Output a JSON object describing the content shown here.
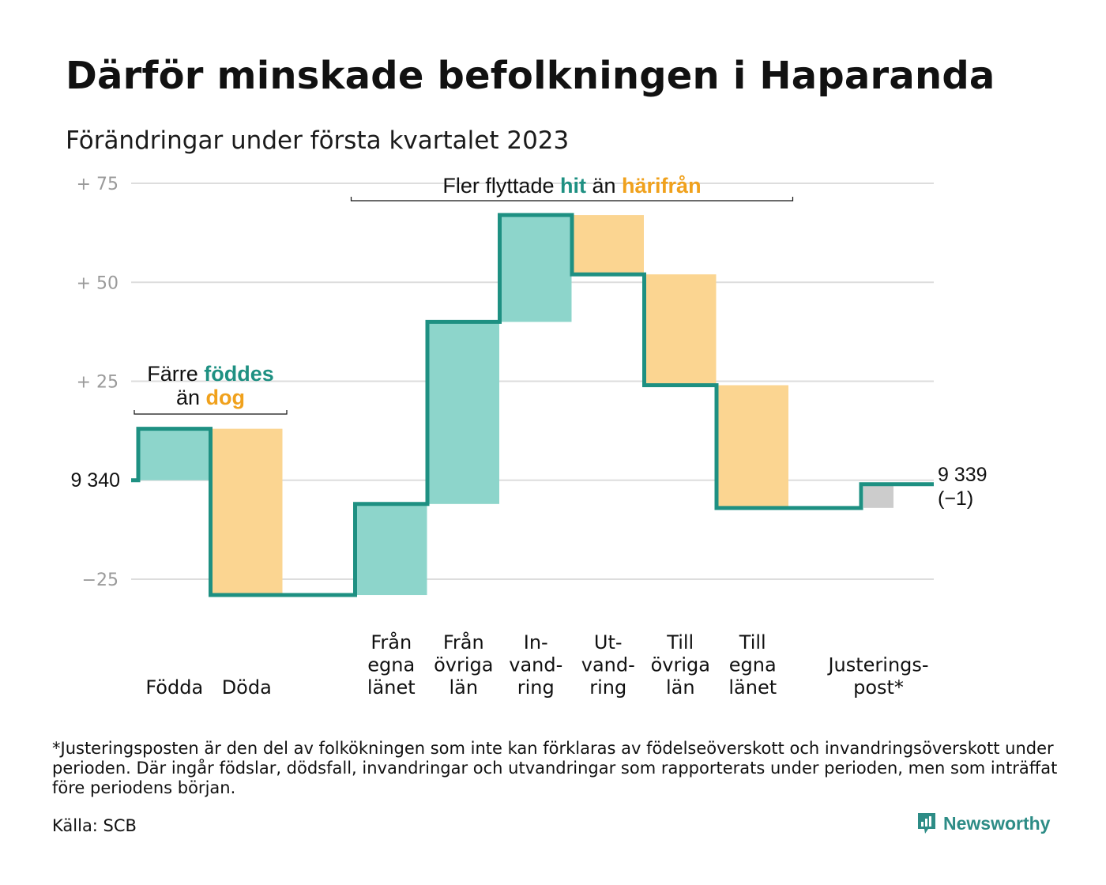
{
  "title": "Därför minskade befolkningen i Haparanda",
  "subtitle": "Förändringar under första kvartalet 2023",
  "colors": {
    "increase": "#8dd5cb",
    "decrease": "#fbd591",
    "adjustment": "#cccccc",
    "line": "#1e9082",
    "accent_teal": "#1e9082",
    "accent_orange": "#f0a11c",
    "grid": "#dddddd",
    "tick_text": "#9a9a9a"
  },
  "chart_data": {
    "type": "waterfall",
    "start_value": 9340,
    "start_label": "9 340",
    "end_label": "9 339",
    "end_change_label": "(−1)",
    "ylim": [
      -30,
      75
    ],
    "yticks": [
      {
        "value": 75,
        "label": "+ 75"
      },
      {
        "value": 50,
        "label": "+ 50"
      },
      {
        "value": 25,
        "label": "+ 25"
      },
      {
        "value": 0,
        "label": ""
      },
      {
        "value": -25,
        "label": "−25"
      }
    ],
    "steps": [
      {
        "name": "Födda",
        "label_lines": [
          "Födda"
        ],
        "change": 13,
        "kind": "increase"
      },
      {
        "name": "Döda",
        "label_lines": [
          "Döda"
        ],
        "change": -42,
        "kind": "decrease"
      },
      {
        "name": "Från egna länet",
        "label_lines": [
          "Från",
          "egna",
          "länet"
        ],
        "change": 23,
        "kind": "increase",
        "gap_before": true
      },
      {
        "name": "Från övriga län",
        "label_lines": [
          "Från",
          "övriga",
          "län"
        ],
        "change": 46,
        "kind": "increase"
      },
      {
        "name": "Invandring",
        "label_lines": [
          "In-",
          "vand-",
          "ring"
        ],
        "change": 27,
        "kind": "increase"
      },
      {
        "name": "Utvandring",
        "label_lines": [
          "Ut-",
          "vand-",
          "ring"
        ],
        "change": -15,
        "kind": "decrease"
      },
      {
        "name": "Till övriga län",
        "label_lines": [
          "Till",
          "övriga",
          "län"
        ],
        "change": -28,
        "kind": "decrease"
      },
      {
        "name": "Till egna länet",
        "label_lines": [
          "Till",
          "egna",
          "länet"
        ],
        "change": -31,
        "kind": "decrease"
      },
      {
        "name": "Justeringspost*",
        "label_lines": [
          "Justerings-",
          "post*"
        ],
        "change": 6,
        "kind": "adjustment",
        "gap_before": true
      }
    ],
    "annotations": [
      {
        "id": "births-deaths",
        "spans_steps": [
          0,
          1
        ],
        "parts_line1": [
          {
            "text": "Färre ",
            "color": "dark"
          },
          {
            "text": "föddes",
            "color": "teal"
          }
        ],
        "parts_line2": [
          {
            "text": "än ",
            "color": "dark"
          },
          {
            "text": "dog",
            "color": "orange"
          }
        ]
      },
      {
        "id": "migration",
        "spans_steps": [
          2,
          7
        ],
        "parts_line1": [
          {
            "text": "Fler flyttade ",
            "color": "dark"
          },
          {
            "text": "hit",
            "color": "teal"
          },
          {
            "text": " än ",
            "color": "dark"
          },
          {
            "text": "härifrån",
            "color": "orange"
          }
        ]
      }
    ]
  },
  "footnote": "*Justeringsposten är den del av folkökningen som inte kan förklaras av födelseöverskott och invandringsöverskott under perioden. Där ingår födslar, dödsfall, invandringar och utvandringar som rapporterats under perioden, men som inträffat före periodens början.",
  "source": "Källa: SCB",
  "brand": {
    "name": "Newsworthy",
    "icon": "newsworthy-logo-icon"
  }
}
